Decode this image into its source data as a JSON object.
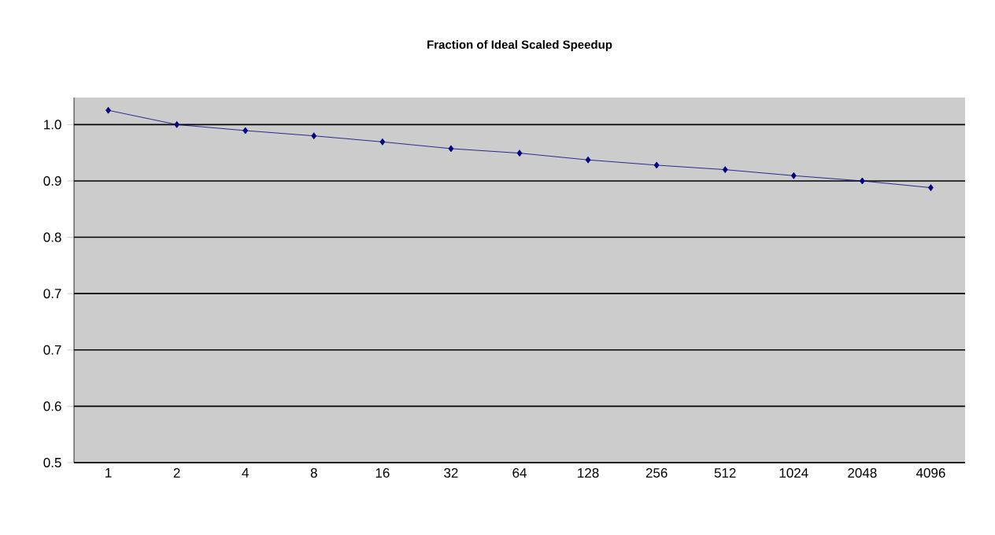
{
  "chart_data": {
    "type": "line",
    "title": "Fraction of Ideal Scaled Speedup",
    "categories": [
      "1",
      "2",
      "4",
      "8",
      "16",
      "32",
      "64",
      "128",
      "256",
      "512",
      "1024",
      "2048",
      "4096"
    ],
    "series": [
      {
        "color": "#000080",
        "values": [
          0.969,
          0.95,
          0.942,
          0.935,
          0.927,
          0.918,
          0.912,
          0.903,
          0.896,
          0.89,
          0.882,
          0.875,
          0.866
        ]
      }
    ],
    "ylim": [
      0.5,
      0.986
    ],
    "yticks": [
      {
        "value": 0.5,
        "label": "0.5"
      },
      {
        "value": 0.575,
        "label": "0.6"
      },
      {
        "value": 0.65,
        "label": "0.7"
      },
      {
        "value": 0.725,
        "label": "0.7"
      },
      {
        "value": 0.8,
        "label": "0.8"
      },
      {
        "value": 0.875,
        "label": "0.9"
      },
      {
        "value": 0.95,
        "label": "1.0"
      }
    ],
    "grid": "y",
    "marker": "diamond",
    "line_style": "solid"
  }
}
